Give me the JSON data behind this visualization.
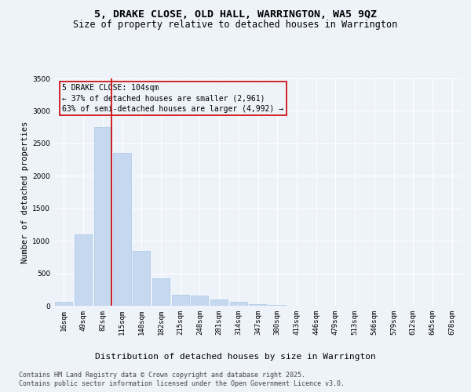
{
  "title1": "5, DRAKE CLOSE, OLD HALL, WARRINGTON, WA5 9QZ",
  "title2": "Size of property relative to detached houses in Warrington",
  "xlabel": "Distribution of detached houses by size in Warrington",
  "ylabel": "Number of detached properties",
  "categories": [
    "16sqm",
    "49sqm",
    "82sqm",
    "115sqm",
    "148sqm",
    "182sqm",
    "215sqm",
    "248sqm",
    "281sqm",
    "314sqm",
    "347sqm",
    "380sqm",
    "413sqm",
    "446sqm",
    "479sqm",
    "513sqm",
    "546sqm",
    "579sqm",
    "612sqm",
    "645sqm",
    "678sqm"
  ],
  "values": [
    60,
    1100,
    2750,
    2350,
    850,
    420,
    175,
    155,
    95,
    55,
    20,
    10,
    5,
    3,
    2,
    1,
    1,
    0,
    0,
    0,
    0
  ],
  "bar_color": "#c5d8f0",
  "bar_edgecolor": "#a8c8e8",
  "vline_color": "#cc0000",
  "annotation_box_text": "5 DRAKE CLOSE: 104sqm\n← 37% of detached houses are smaller (2,961)\n63% of semi-detached houses are larger (4,992) →",
  "box_edgecolor": "#cc0000",
  "ylim": [
    0,
    3500
  ],
  "yticks": [
    0,
    500,
    1000,
    1500,
    2000,
    2500,
    3000,
    3500
  ],
  "footer1": "Contains HM Land Registry data © Crown copyright and database right 2025.",
  "footer2": "Contains public sector information licensed under the Open Government Licence v3.0.",
  "bg_color": "#eef2f9",
  "plot_bg_color": "#eef2f9",
  "title1_fontsize": 9.5,
  "title2_fontsize": 8.5,
  "xlabel_fontsize": 8,
  "ylabel_fontsize": 7.5,
  "annotation_fontsize": 7,
  "tick_fontsize": 6.5,
  "footer_fontsize": 6
}
